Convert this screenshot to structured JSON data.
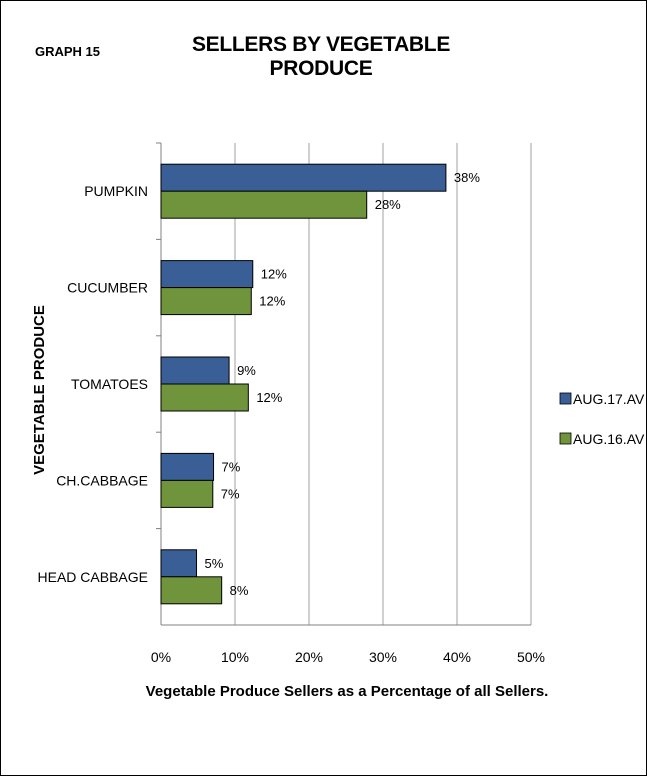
{
  "graph_label": "GRAPH 15",
  "chart_data": {
    "type": "bar",
    "orientation": "horizontal",
    "title": "SELLERS BY VEGETABLE PRODUCE",
    "xlabel": "Vegetable Produce Sellers as a Percentage of all Sellers.",
    "ylabel": "VEGETABLE PRODUCE",
    "categories": [
      "PUMPKIN",
      "CUCUMBER",
      "TOMATOES",
      "CH.CABBAGE",
      "HEAD CABBAGE"
    ],
    "series": [
      {
        "name": "AUG.17.AV",
        "color": "#3a5f96",
        "values": [
          38.5,
          12.4,
          9.2,
          7.1,
          4.8
        ],
        "labels": [
          "38%",
          "12%",
          "9%",
          "7%",
          "5%"
        ]
      },
      {
        "name": "AUG.16.AV",
        "color": "#6f943c",
        "values": [
          27.8,
          12.2,
          11.8,
          7.0,
          8.2
        ],
        "labels": [
          "28%",
          "12%",
          "12%",
          "7%",
          "8%"
        ]
      }
    ],
    "xlim": [
      0,
      50
    ],
    "xticks": [
      0,
      10,
      20,
      30,
      40,
      50
    ],
    "xtick_labels": [
      "0%",
      "10%",
      "20%",
      "30%",
      "40%",
      "50%"
    ],
    "grid": "vertical",
    "legend": "right"
  }
}
